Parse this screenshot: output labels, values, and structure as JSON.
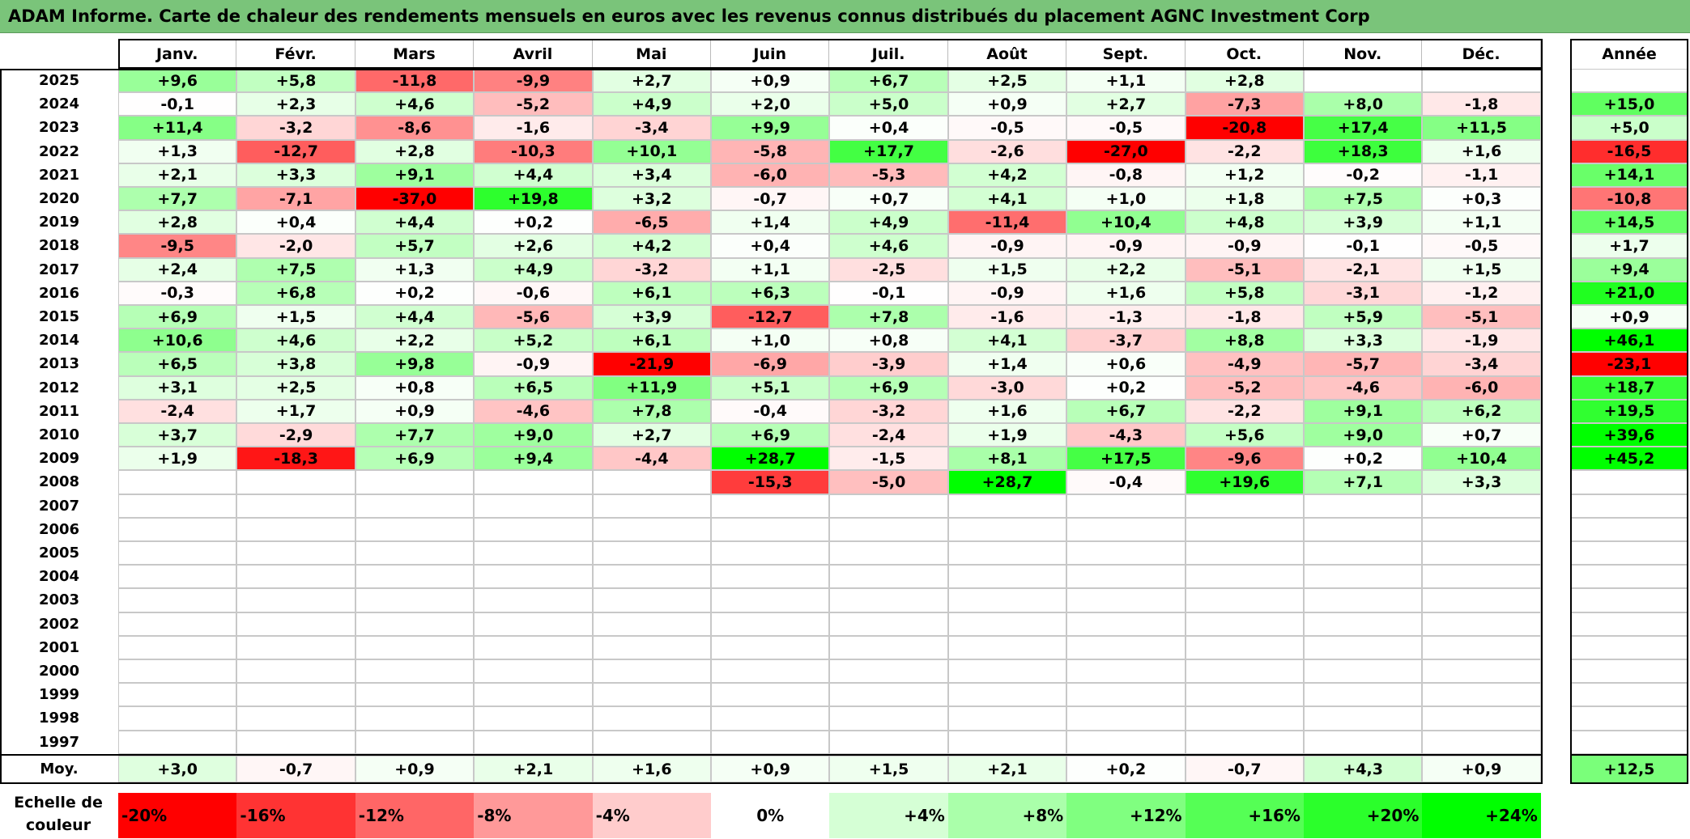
{
  "title": "ADAM Informe. Carte de chaleur des rendements mensuels en euros avec les revenus connus distribués du placement AGNC Investment Corp",
  "chart_data": {
    "type": "heatmap",
    "title": "ADAM Informe. Carte de chaleur des rendements mensuels en euros avec les revenus connus distribués du placement AGNC Investment Corp",
    "columns": [
      "Janv.",
      "Févr.",
      "Mars",
      "Avril",
      "Mai",
      "Juin",
      "Juil.",
      "Août",
      "Sept.",
      "Oct.",
      "Nov.",
      "Déc."
    ],
    "year_column_label": "Année",
    "rows": [
      {
        "year": "2025",
        "months": [
          "+9,6",
          "+5,8",
          "-11,8",
          "-9,9",
          "+2,7",
          "+0,9",
          "+6,7",
          "+2,5",
          "+1,1",
          "+2,8",
          "",
          ""
        ],
        "annual": ""
      },
      {
        "year": "2024",
        "months": [
          "-0,1",
          "+2,3",
          "+4,6",
          "-5,2",
          "+4,9",
          "+2,0",
          "+5,0",
          "+0,9",
          "+2,7",
          "-7,3",
          "+8,0",
          "-1,8"
        ],
        "annual": "+15,0"
      },
      {
        "year": "2023",
        "months": [
          "+11,4",
          "-3,2",
          "-8,6",
          "-1,6",
          "-3,4",
          "+9,9",
          "+0,4",
          "-0,5",
          "-0,5",
          "-20,8",
          "+17,4",
          "+11,5"
        ],
        "annual": "+5,0"
      },
      {
        "year": "2022",
        "months": [
          "+1,3",
          "-12,7",
          "+2,8",
          "-10,3",
          "+10,1",
          "-5,8",
          "+17,7",
          "-2,6",
          "-27,0",
          "-2,2",
          "+18,3",
          "+1,6"
        ],
        "annual": "-16,5"
      },
      {
        "year": "2021",
        "months": [
          "+2,1",
          "+3,3",
          "+9,1",
          "+4,4",
          "+3,4",
          "-6,0",
          "-5,3",
          "+4,2",
          "-0,8",
          "+1,2",
          "-0,2",
          "-1,1"
        ],
        "annual": "+14,1"
      },
      {
        "year": "2020",
        "months": [
          "+7,7",
          "-7,1",
          "-37,0",
          "+19,8",
          "+3,2",
          "-0,7",
          "+0,7",
          "+4,1",
          "+1,0",
          "+1,8",
          "+7,5",
          "+0,3"
        ],
        "annual": "-10,8"
      },
      {
        "year": "2019",
        "months": [
          "+2,8",
          "+0,4",
          "+4,4",
          "+0,2",
          "-6,5",
          "+1,4",
          "+4,9",
          "-11,4",
          "+10,4",
          "+4,8",
          "+3,9",
          "+1,1"
        ],
        "annual": "+14,5"
      },
      {
        "year": "2018",
        "months": [
          "-9,5",
          "-2,0",
          "+5,7",
          "+2,6",
          "+4,2",
          "+0,4",
          "+4,6",
          "-0,9",
          "-0,9",
          "-0,9",
          "-0,1",
          "-0,5"
        ],
        "annual": "+1,7"
      },
      {
        "year": "2017",
        "months": [
          "+2,4",
          "+7,5",
          "+1,3",
          "+4,9",
          "-3,2",
          "+1,1",
          "-2,5",
          "+1,5",
          "+2,2",
          "-5,1",
          "-2,1",
          "+1,5"
        ],
        "annual": "+9,4"
      },
      {
        "year": "2016",
        "months": [
          "-0,3",
          "+6,8",
          "+0,2",
          "-0,6",
          "+6,1",
          "+6,3",
          "-0,1",
          "-0,9",
          "+1,6",
          "+5,8",
          "-3,1",
          "-1,2"
        ],
        "annual": "+21,0"
      },
      {
        "year": "2015",
        "months": [
          "+6,9",
          "+1,5",
          "+4,4",
          "-5,6",
          "+3,9",
          "-12,7",
          "+7,8",
          "-1,6",
          "-1,3",
          "-1,8",
          "+5,9",
          "-5,1"
        ],
        "annual": "+0,9"
      },
      {
        "year": "2014",
        "months": [
          "+10,6",
          "+4,6",
          "+2,2",
          "+5,2",
          "+6,1",
          "+1,0",
          "+0,8",
          "+4,1",
          "-3,7",
          "+8,8",
          "+3,3",
          "-1,9"
        ],
        "annual": "+46,1"
      },
      {
        "year": "2013",
        "months": [
          "+6,5",
          "+3,8",
          "+9,8",
          "-0,9",
          "-21,9",
          "-6,9",
          "-3,9",
          "+1,4",
          "+0,6",
          "-4,9",
          "-5,7",
          "-3,4"
        ],
        "annual": "-23,1"
      },
      {
        "year": "2012",
        "months": [
          "+3,1",
          "+2,5",
          "+0,8",
          "+6,5",
          "+11,9",
          "+5,1",
          "+6,9",
          "-3,0",
          "+0,2",
          "-5,2",
          "-4,6",
          "-6,0"
        ],
        "annual": "+18,7"
      },
      {
        "year": "2011",
        "months": [
          "-2,4",
          "+1,7",
          "+0,9",
          "-4,6",
          "+7,8",
          "-0,4",
          "-3,2",
          "+1,6",
          "+6,7",
          "-2,2",
          "+9,1",
          "+6,2"
        ],
        "annual": "+19,5"
      },
      {
        "year": "2010",
        "months": [
          "+3,7",
          "-2,9",
          "+7,7",
          "+9,0",
          "+2,7",
          "+6,9",
          "-2,4",
          "+1,9",
          "-4,3",
          "+5,6",
          "+9,0",
          "+0,7"
        ],
        "annual": "+39,6"
      },
      {
        "year": "2009",
        "months": [
          "+1,9",
          "-18,3",
          "+6,9",
          "+9,4",
          "-4,4",
          "+28,7",
          "-1,5",
          "+8,1",
          "+17,5",
          "-9,6",
          "+0,2",
          "+10,4"
        ],
        "annual": "+45,2"
      },
      {
        "year": "2008",
        "months": [
          "",
          "",
          "",
          "",
          "",
          "-15,3",
          "-5,0",
          "+28,7",
          "-0,4",
          "+19,6",
          "+7,1",
          "+3,3"
        ],
        "annual": ""
      },
      {
        "year": "2007",
        "months": [
          "",
          "",
          "",
          "",
          "",
          "",
          "",
          "",
          "",
          "",
          "",
          ""
        ],
        "annual": ""
      },
      {
        "year": "2006",
        "months": [
          "",
          "",
          "",
          "",
          "",
          "",
          "",
          "",
          "",
          "",
          "",
          ""
        ],
        "annual": ""
      },
      {
        "year": "2005",
        "months": [
          "",
          "",
          "",
          "",
          "",
          "",
          "",
          "",
          "",
          "",
          "",
          ""
        ],
        "annual": ""
      },
      {
        "year": "2004",
        "months": [
          "",
          "",
          "",
          "",
          "",
          "",
          "",
          "",
          "",
          "",
          "",
          ""
        ],
        "annual": ""
      },
      {
        "year": "2003",
        "months": [
          "",
          "",
          "",
          "",
          "",
          "",
          "",
          "",
          "",
          "",
          "",
          ""
        ],
        "annual": ""
      },
      {
        "year": "2002",
        "months": [
          "",
          "",
          "",
          "",
          "",
          "",
          "",
          "",
          "",
          "",
          "",
          ""
        ],
        "annual": ""
      },
      {
        "year": "2001",
        "months": [
          "",
          "",
          "",
          "",
          "",
          "",
          "",
          "",
          "",
          "",
          "",
          ""
        ],
        "annual": ""
      },
      {
        "year": "2000",
        "months": [
          "",
          "",
          "",
          "",
          "",
          "",
          "",
          "",
          "",
          "",
          "",
          ""
        ],
        "annual": ""
      },
      {
        "year": "1999",
        "months": [
          "",
          "",
          "",
          "",
          "",
          "",
          "",
          "",
          "",
          "",
          "",
          ""
        ],
        "annual": ""
      },
      {
        "year": "1998",
        "months": [
          "",
          "",
          "",
          "",
          "",
          "",
          "",
          "",
          "",
          "",
          "",
          ""
        ],
        "annual": ""
      },
      {
        "year": "1997",
        "months": [
          "",
          "",
          "",
          "",
          "",
          "",
          "",
          "",
          "",
          "",
          "",
          ""
        ],
        "annual": ""
      }
    ],
    "average": {
      "label": "Moy.",
      "months": [
        "+3,0",
        "-0,7",
        "+0,9",
        "+2,1",
        "+1,6",
        "+0,9",
        "+1,5",
        "+2,1",
        "+0,2",
        "-0,7",
        "+4,3",
        "+0,9"
      ],
      "annual": "+12,5"
    },
    "color_scale": {
      "label_line1": "Echelle de",
      "label_line2": "couleur",
      "steps": [
        "-20%",
        "-16%",
        "-12%",
        "-8%",
        "-4%",
        "0%",
        "+4%",
        "+8%",
        "+12%",
        "+16%",
        "+20%",
        "+24%"
      ],
      "negative_color": "#ff0000",
      "neutral_color": "#ffffff",
      "positive_color": "#00ff00"
    }
  }
}
